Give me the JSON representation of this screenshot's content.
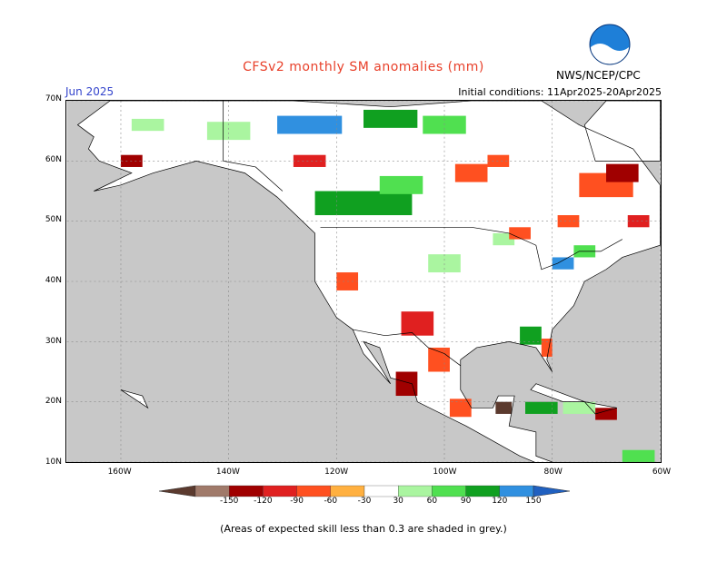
{
  "title": "CFSv2 monthly SM anomalies (mm)",
  "month": "Jun 2025",
  "initial_conditions": "Initial conditions: 11Apr2025-20Apr2025",
  "agency": "NWS/NCEP/CPC",
  "logo_text": "NOAA",
  "footnote": "(Areas of expected skill less than 0.3 are shaded in grey.)",
  "map": {
    "extent": {
      "lon_min": -170,
      "lon_max": -60,
      "lat_min": 10,
      "lat_max": 70
    },
    "lat_ticks": [
      {
        "value": 70,
        "label": "70N"
      },
      {
        "value": 60,
        "label": "60N"
      },
      {
        "value": 50,
        "label": "50N"
      },
      {
        "value": 40,
        "label": "40N"
      },
      {
        "value": 30,
        "label": "30N"
      },
      {
        "value": 20,
        "label": "20N"
      },
      {
        "value": 10,
        "label": "10N"
      }
    ],
    "lon_ticks": [
      {
        "value": -160,
        "label": "160W"
      },
      {
        "value": -140,
        "label": "140W"
      },
      {
        "value": -120,
        "label": "120W"
      },
      {
        "value": -100,
        "label": "100W"
      },
      {
        "value": -80,
        "label": "80W"
      },
      {
        "value": -60,
        "label": "60W"
      }
    ],
    "colors": {
      "low_skill": "#c8c8c8",
      "land_neutral": "#ffffff",
      "coastline": "#000000"
    }
  },
  "legend": {
    "labels": [
      "-150",
      "-120",
      "-90",
      "-60",
      "-30",
      "30",
      "60",
      "90",
      "120",
      "150"
    ],
    "colors": [
      "#5b3a2e",
      "#a07a6a",
      "#a00000",
      "#e02020",
      "#ff5020",
      "#ffb040",
      "#ffffff",
      "#aaf5a0",
      "#50e050",
      "#10a020",
      "#3090e0",
      "#2060c0"
    ]
  },
  "anomaly_patches": [
    {
      "lon": -125,
      "lat": 66,
      "w": 12,
      "h": 3,
      "cat": "pos120"
    },
    {
      "lon": -110,
      "lat": 67,
      "w": 10,
      "h": 3,
      "cat": "pos90"
    },
    {
      "lon": -100,
      "lat": 66,
      "w": 8,
      "h": 3,
      "cat": "pos60"
    },
    {
      "lon": -140,
      "lat": 65,
      "w": 8,
      "h": 3,
      "cat": "pos30"
    },
    {
      "lon": -155,
      "lat": 66,
      "w": 6,
      "h": 2,
      "cat": "pos30"
    },
    {
      "lon": -115,
      "lat": 53,
      "w": 18,
      "h": 4,
      "cat": "pos90"
    },
    {
      "lon": -108,
      "lat": 56,
      "w": 8,
      "h": 3,
      "cat": "pos60"
    },
    {
      "lon": -95,
      "lat": 58,
      "w": 6,
      "h": 3,
      "cat": "neg30"
    },
    {
      "lon": -90,
      "lat": 60,
      "w": 4,
      "h": 2,
      "cat": "neg30"
    },
    {
      "lon": -70,
      "lat": 56,
      "w": 10,
      "h": 4,
      "cat": "neg30"
    },
    {
      "lon": -67,
      "lat": 58,
      "w": 6,
      "h": 3,
      "cat": "neg90"
    },
    {
      "lon": -125,
      "lat": 60,
      "w": 6,
      "h": 2,
      "cat": "neg60"
    },
    {
      "lon": -158,
      "lat": 60,
      "w": 4,
      "h": 2,
      "cat": "neg90"
    },
    {
      "lon": -105,
      "lat": 33,
      "w": 6,
      "h": 4,
      "cat": "neg60"
    },
    {
      "lon": -101,
      "lat": 27,
      "w": 4,
      "h": 4,
      "cat": "neg30"
    },
    {
      "lon": -107,
      "lat": 23,
      "w": 4,
      "h": 4,
      "cat": "neg90"
    },
    {
      "lon": -118,
      "lat": 40,
      "w": 4,
      "h": 3,
      "cat": "neg30"
    },
    {
      "lon": -84,
      "lat": 31,
      "w": 4,
      "h": 3,
      "cat": "pos90"
    },
    {
      "lon": -81,
      "lat": 29,
      "w": 2,
      "h": 3,
      "cat": "neg30"
    },
    {
      "lon": -100,
      "lat": 43,
      "w": 6,
      "h": 3,
      "cat": "pos30"
    },
    {
      "lon": -74,
      "lat": 45,
      "w": 4,
      "h": 2,
      "cat": "pos60"
    },
    {
      "lon": -78,
      "lat": 43,
      "w": 4,
      "h": 2,
      "cat": "pos120"
    },
    {
      "lon": -89,
      "lat": 47,
      "w": 4,
      "h": 2,
      "cat": "pos30"
    },
    {
      "lon": -97,
      "lat": 19,
      "w": 4,
      "h": 3,
      "cat": "neg30"
    },
    {
      "lon": -89,
      "lat": 19,
      "w": 3,
      "h": 2,
      "cat": "neg150"
    },
    {
      "lon": -82,
      "lat": 19,
      "w": 6,
      "h": 2,
      "cat": "pos90"
    },
    {
      "lon": -75,
      "lat": 19,
      "w": 6,
      "h": 2,
      "cat": "pos30"
    },
    {
      "lon": -70,
      "lat": 18,
      "w": 4,
      "h": 2,
      "cat": "neg90"
    },
    {
      "lon": -64,
      "lat": 11,
      "w": 6,
      "h": 2,
      "cat": "pos60"
    },
    {
      "lon": -64,
      "lat": 50,
      "w": 4,
      "h": 2,
      "cat": "neg60"
    },
    {
      "lon": -86,
      "lat": 48,
      "w": 4,
      "h": 2,
      "cat": "neg30"
    },
    {
      "lon": -77,
      "lat": 50,
      "w": 4,
      "h": 2,
      "cat": "neg30"
    }
  ]
}
